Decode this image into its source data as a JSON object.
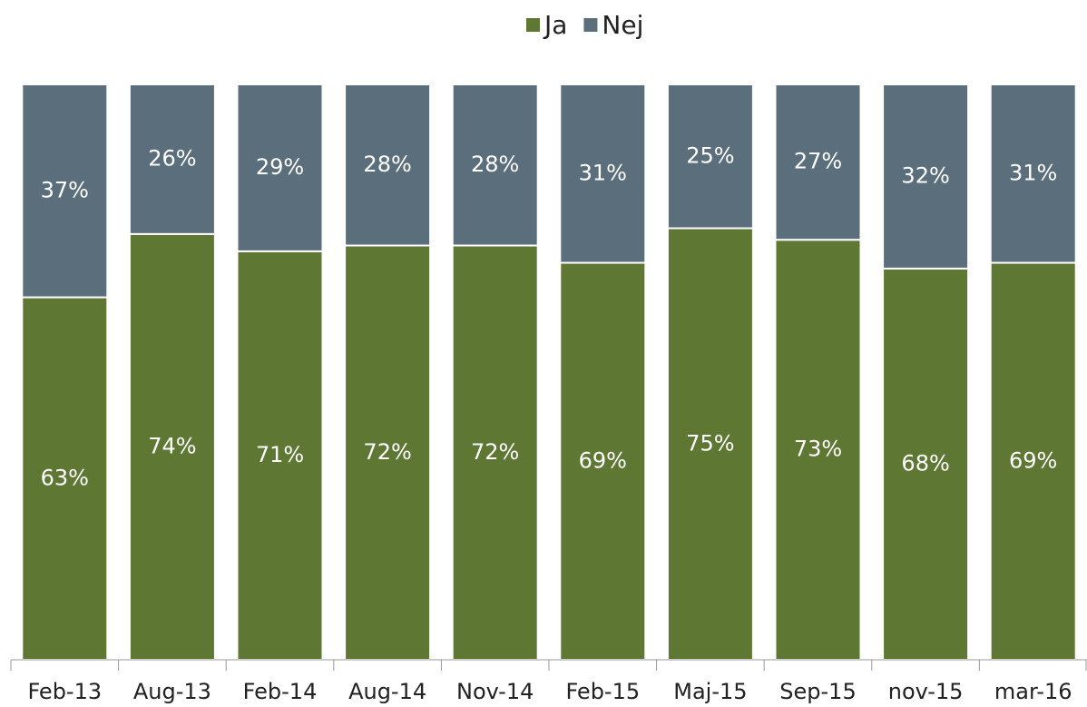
{
  "chart_data": {
    "type": "stacked_bar",
    "categories": [
      "Feb-13",
      "Aug-13",
      "Feb-14",
      "Aug-14",
      "Nov-14",
      "Feb-15",
      "Maj-15",
      "Sep-15",
      "nov-15",
      "mar-16"
    ],
    "series": [
      {
        "name": "Ja",
        "color": "#5e7733",
        "values": [
          63,
          74,
          71,
          72,
          72,
          69,
          75,
          73,
          68,
          69
        ],
        "value_labels": [
          "63%",
          "74%",
          "71%",
          "72%",
          "72%",
          "69%",
          "75%",
          "73%",
          "68%",
          "69%"
        ]
      },
      {
        "name": "Nej",
        "color": "#5b6e7c",
        "values": [
          37,
          26,
          29,
          28,
          28,
          31,
          25,
          27,
          32,
          31
        ],
        "value_labels": [
          "37%",
          "26%",
          "29%",
          "28%",
          "28%",
          "31%",
          "25%",
          "27%",
          "32%",
          "31%"
        ]
      }
    ],
    "ylim": [
      0,
      100
    ],
    "legend": "top"
  }
}
